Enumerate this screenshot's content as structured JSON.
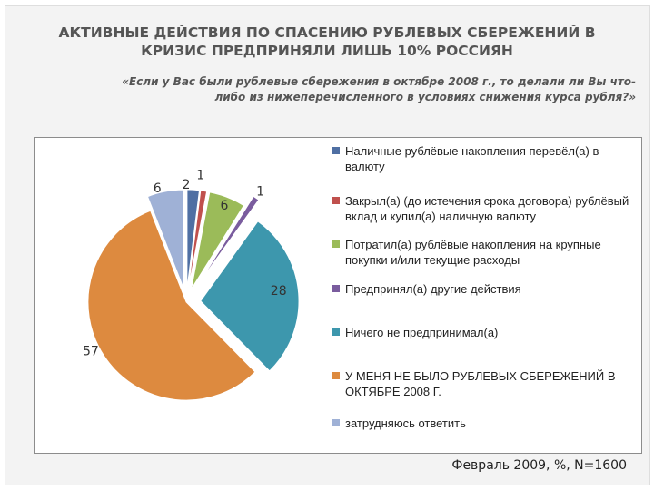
{
  "header": {
    "title_line1": "АКТИВНЫЕ ДЕЙСТВИЯ ПО СПАСЕНИЮ РУБЛЕВЫХ СБЕРЕЖЕНИЙ В",
    "title_line2": "КРИЗИС ПРЕДПРИНЯЛИ ЛИШЬ 10% РОССИЯН",
    "subtitle_line1": "«Если у Вас были рублевые сбережения в октябре 2008 г., то делали ли Вы что-",
    "subtitle_line2": "либо из нижеперечисленного в условиях снижения курса рубля?»"
  },
  "footnote": "Февраль 2009, %, N=1600",
  "chart_data": {
    "type": "pie",
    "legend_position": "right",
    "slices": [
      {
        "label": "Наличные рублёвые накопления перевёл(а) в валюту",
        "value": 2,
        "value_label": "2",
        "color": "#4f6fa3"
      },
      {
        "label": "Закрыл(а) (до истечения срока договора) рублёвый вклад и купил(а) наличную валюту",
        "value": 1,
        "value_label": "1",
        "color": "#c0504d"
      },
      {
        "label": "Потратил(а) рублёвые накопления на крупные покупки и/или текущие расходы",
        "value": 6,
        "value_label": "6",
        "color": "#9bbb59"
      },
      {
        "label": "Предпринял(а) другие действия",
        "value": 1,
        "value_label": "1",
        "color": "#7a5c9e"
      },
      {
        "label": "Ничего не предпринимал(а)",
        "value": 28,
        "value_label": "28",
        "color": "#3d97ad"
      },
      {
        "label": "У МЕНЯ НЕ БЫЛО РУБЛЕВЫХ СБЕРЕЖЕНИЙ В ОКТЯБРЕ 2008 Г.",
        "value": 57,
        "value_label": "57",
        "color": "#dd8a3f"
      },
      {
        "label": "затрудняюсь ответить",
        "value": 6,
        "value_label": "6",
        "color": "#9fb1d6"
      }
    ]
  }
}
